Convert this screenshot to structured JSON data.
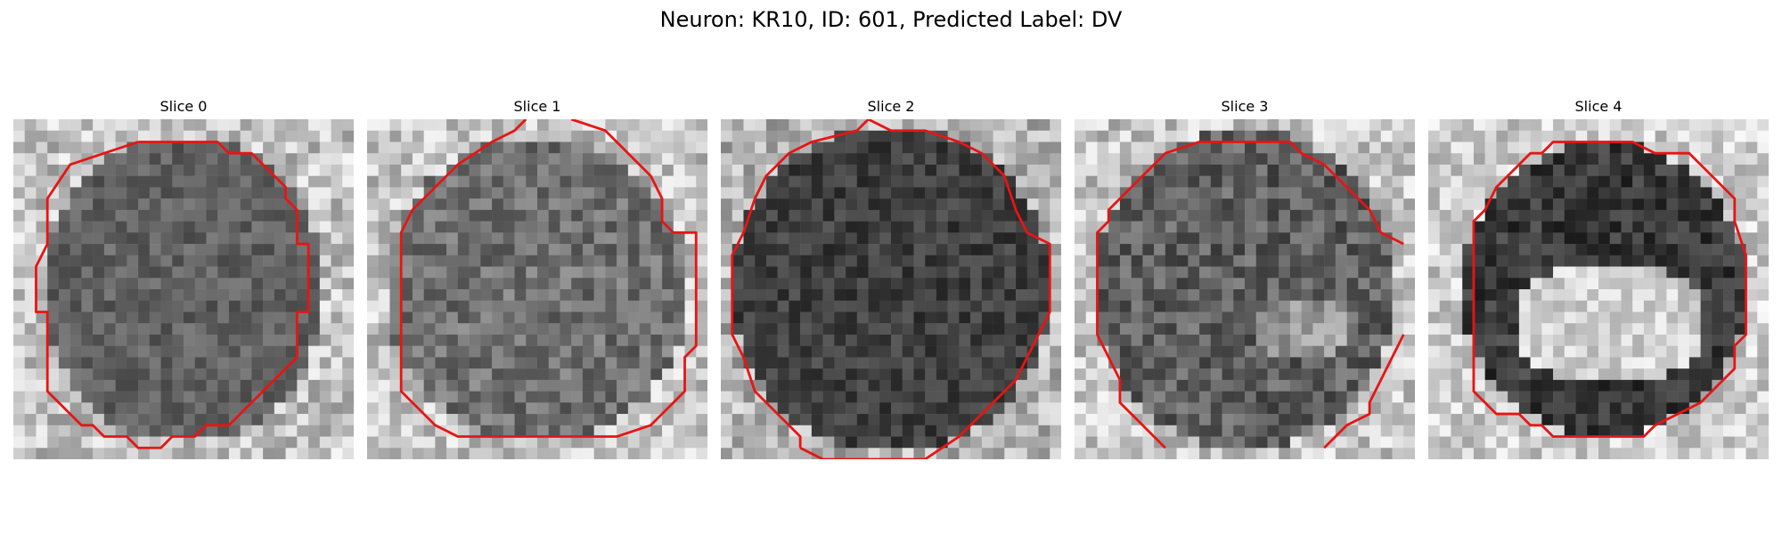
{
  "figure": {
    "title": "Neuron: KR10, ID: 601, Predicted Label: DV"
  },
  "panels": [
    {
      "title": "Slice 0"
    },
    {
      "title": "Slice 1"
    },
    {
      "title": "Slice 2"
    },
    {
      "title": "Slice 3"
    },
    {
      "title": "Slice 4"
    }
  ],
  "colors": {
    "contour": "#e81414",
    "background": "#ffffff"
  }
}
